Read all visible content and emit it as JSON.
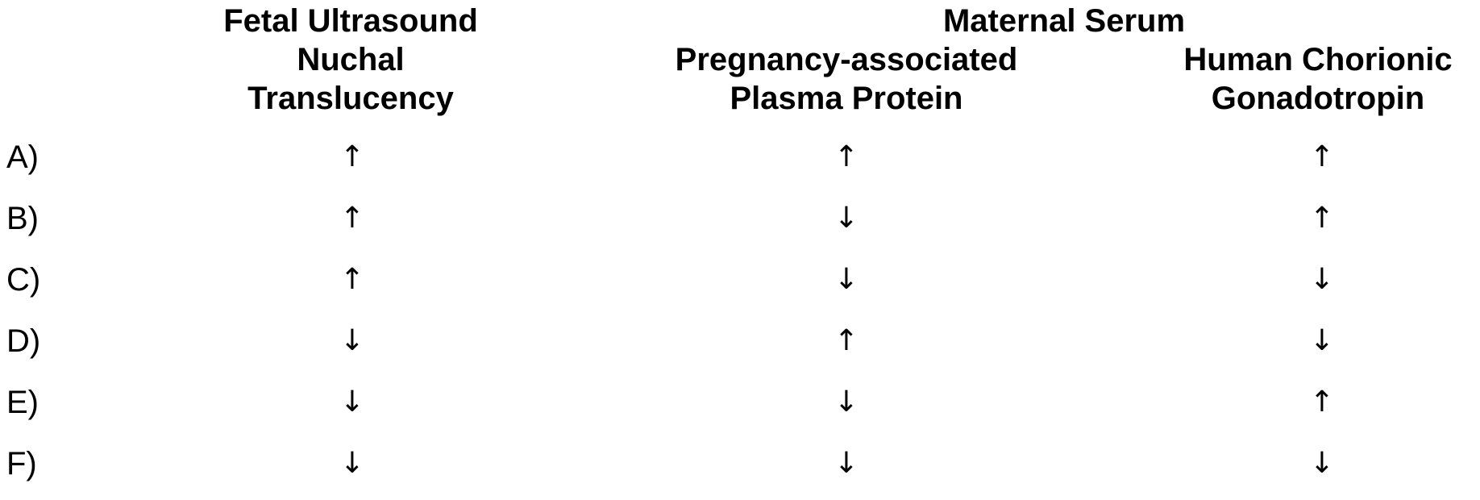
{
  "headers": {
    "fetal": [
      "Fetal Ultrasound",
      "Nuchal",
      "Translucency"
    ],
    "maternal": "Maternal Serum",
    "pappa": [
      "Pregnancy-associated",
      "Plasma Protein"
    ],
    "hcg": [
      "Human Chorionic",
      "Gonadotropin"
    ]
  },
  "rows": [
    {
      "label": "A)",
      "nt": "↑",
      "pappa": "↑",
      "hcg": "↑"
    },
    {
      "label": "B)",
      "nt": "↑",
      "pappa": "↓",
      "hcg": "↑"
    },
    {
      "label": "C)",
      "nt": "↑",
      "pappa": "↓",
      "hcg": "↓"
    },
    {
      "label": "D)",
      "nt": "↓",
      "pappa": "↑",
      "hcg": "↓"
    },
    {
      "label": "E)",
      "nt": "↓",
      "pappa": "↓",
      "hcg": "↑"
    },
    {
      "label": "F)",
      "nt": "↓",
      "pappa": "↓",
      "hcg": "↓"
    }
  ]
}
